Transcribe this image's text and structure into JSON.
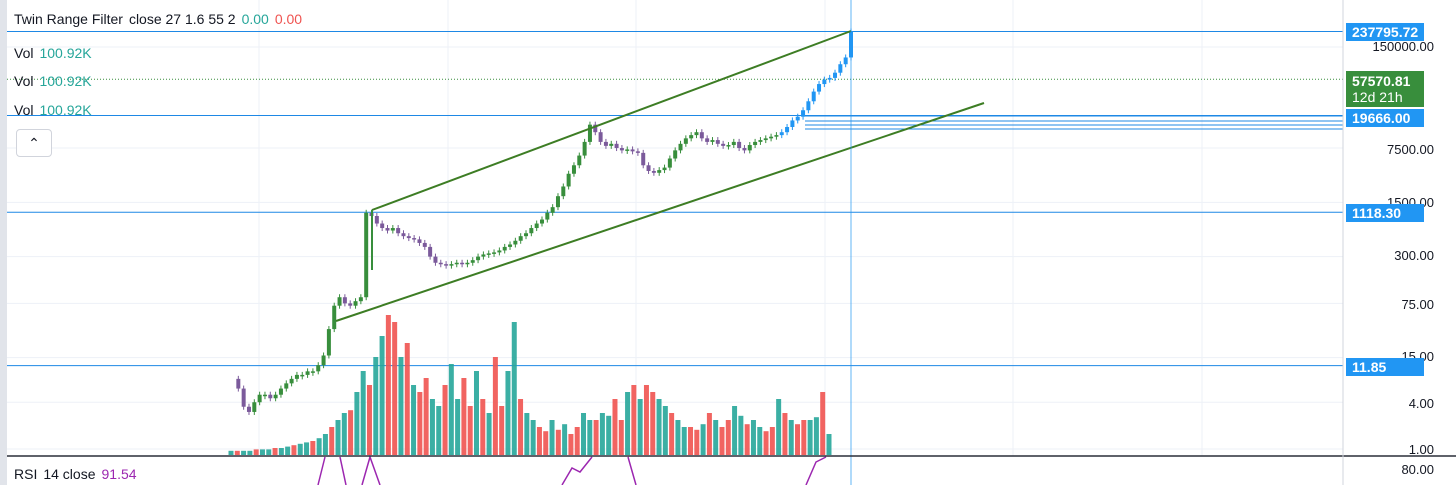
{
  "legend": {
    "indicator": {
      "name": "Twin Range Filter",
      "params": "close 27 1.6 55 2",
      "v1": "0.00",
      "v2": "0.00"
    },
    "vols": [
      {
        "label": "Vol",
        "value": "100.92K"
      },
      {
        "label": "Vol",
        "value": "100.92K"
      },
      {
        "label": "Vol",
        "value": "100.92K"
      }
    ],
    "rsi": {
      "name": "RSI",
      "params": "14 close",
      "value": "91.54"
    },
    "collapse_glyph": "⌃"
  },
  "price_scale": {
    "ticks": [
      "150000.00",
      "7500.00",
      "1500.00",
      "300.00",
      "75.00",
      "15.00",
      "4.00",
      "1.00"
    ],
    "rsi_tick": "80.00",
    "badges": [
      {
        "text": "237795.72",
        "color": "#2196f3"
      },
      {
        "text": "57570.81",
        "sub": "12d 21h",
        "color": "#388e3c"
      },
      {
        "text": "19666.00",
        "color": "#2196f3"
      },
      {
        "text": "1118.30",
        "color": "#2196f3"
      },
      {
        "text": "11.85",
        "color": "#2196f3"
      }
    ]
  },
  "colors": {
    "up": "#388e3c",
    "down": "#7b5a9b",
    "filter_up": "#2196f3",
    "vol_up": "#26a69a",
    "vol_down": "#ef5350",
    "channel": "#3d7d24",
    "hline": "#1e88e5",
    "rsi": "#9c27b0",
    "grid": "#edf1f7"
  },
  "chart_data": {
    "type": "candlestick",
    "scale": "log",
    "ylim": [
      1,
      260000
    ],
    "price_series": [
      8,
      6,
      3.5,
      3,
      4,
      5,
      5,
      4.5,
      5,
      6,
      7,
      8,
      9,
      9,
      10,
      10,
      12,
      16,
      35,
      70,
      90,
      75,
      70,
      80,
      90,
      1100,
      1000,
      800,
      700,
      650,
      700,
      600,
      550,
      520,
      500,
      450,
      400,
      300,
      250,
      240,
      230,
      240,
      250,
      240,
      250,
      270,
      300,
      320,
      330,
      340,
      360,
      400,
      430,
      480,
      550,
      600,
      700,
      800,
      900,
      1100,
      1300,
      1800,
      2400,
      3500,
      4500,
      6000,
      9000,
      15000,
      12000,
      9000,
      8000,
      8500,
      7500,
      7000,
      7200,
      6800,
      6500,
      4500,
      3800,
      3600,
      3900,
      4200,
      5500,
      7000,
      8500,
      10000,
      11000,
      12000,
      10000,
      9000,
      9500,
      8500,
      8000,
      8200,
      9000,
      7500,
      7000,
      8200,
      9000,
      9500,
      10000,
      10500,
      11000,
      12000,
      14000,
      17000,
      19000,
      23000,
      30000,
      40000,
      50000,
      57000,
      60000,
      70000,
      90000,
      110000,
      237795
    ],
    "volume_series": [
      0.3,
      0.3,
      0.3,
      0.3,
      0.4,
      0.4,
      0.4,
      0.5,
      0.5,
      0.6,
      0.7,
      0.8,
      0.9,
      1,
      1.2,
      1.5,
      2,
      2.5,
      3,
      3.2,
      4.5,
      6,
      5,
      7,
      8.5,
      10,
      9.5,
      7,
      8,
      5,
      4.5,
      5.5,
      4,
      3.5,
      5,
      6.5,
      4,
      5.5,
      3.5,
      6,
      4,
      3,
      7,
      3.5,
      6,
      9.5,
      4,
      3,
      2.5,
      2,
      1.7,
      2.5,
      1.8,
      2.2,
      1.5,
      2,
      3,
      2.5,
      2.5,
      3,
      2.8,
      4,
      2.5,
      4.5,
      5,
      4,
      5,
      4.5,
      4,
      3.5,
      3,
      2.5,
      2,
      2,
      1.8,
      2.2,
      3,
      2.5,
      2,
      2.5,
      3.5,
      2.8,
      2.2,
      2.5,
      2,
      1.7,
      2,
      4,
      3,
      2.5,
      2.2,
      2.5,
      2.5,
      2.7,
      4.5,
      1.5
    ],
    "volume_last": "100.92K",
    "rsi_last": 91.54,
    "annotations": [
      {
        "type": "hline",
        "value": 237795.72
      },
      {
        "type": "dotted_hline",
        "value": 57570.81
      },
      {
        "type": "hline",
        "value": 19666.0
      },
      {
        "type": "hline",
        "value": 1118.3
      },
      {
        "type": "hline",
        "value": 11.85
      }
    ]
  }
}
